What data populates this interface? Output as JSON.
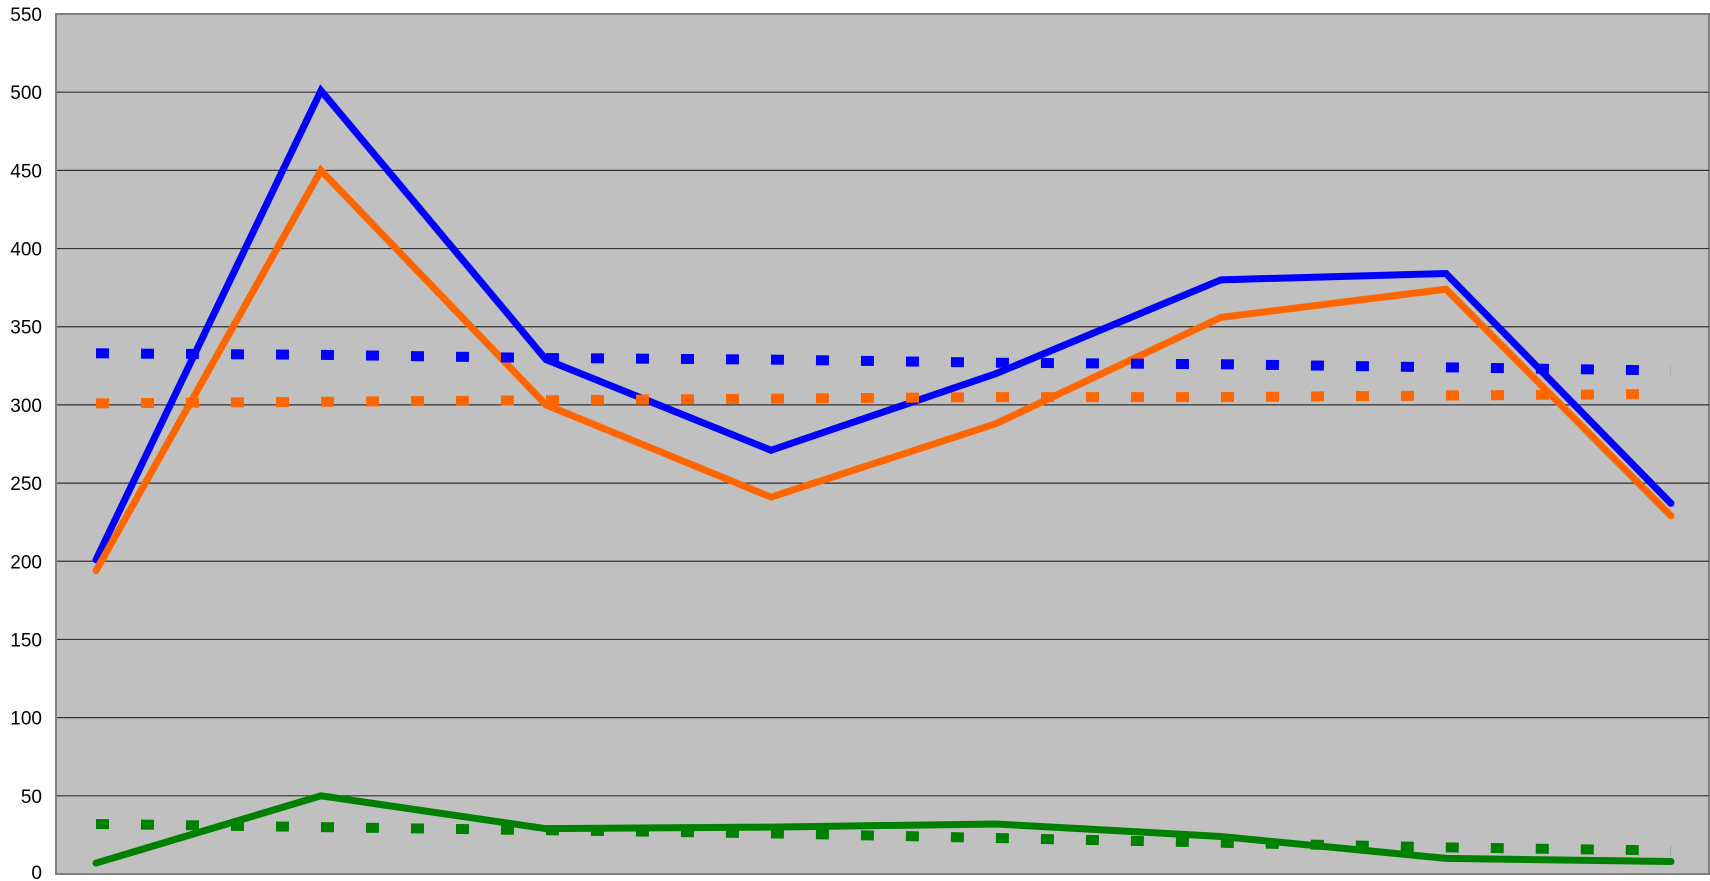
{
  "chart_data": {
    "type": "line",
    "title": "",
    "xlabel": "",
    "ylabel": "",
    "ylim": [
      0,
      550
    ],
    "y_ticks": [
      "0",
      "50",
      "100",
      "150",
      "200",
      "250",
      "300",
      "350",
      "400",
      "450",
      "500",
      "550"
    ],
    "grid": true,
    "legend": "none",
    "background": "#c0c0c0",
    "x": [
      1,
      2,
      3,
      4,
      5,
      6,
      7,
      8
    ],
    "series": [
      {
        "color": "#0000ff",
        "style": "solid",
        "values": [
          201,
          501,
          329,
          271,
          320,
          380,
          384,
          237
        ]
      },
      {
        "color": "#ff6600",
        "style": "solid",
        "values": [
          194,
          450,
          300,
          241,
          288,
          356,
          374,
          229
        ]
      },
      {
        "color": "#008000",
        "style": "solid",
        "values": [
          7,
          50,
          29,
          30,
          32,
          24,
          10,
          8
        ]
      },
      {
        "color": "#0000ff",
        "style": "dotted",
        "values": [
          333,
          332,
          330,
          329,
          327,
          326,
          324,
          322
        ]
      },
      {
        "color": "#ff6600",
        "style": "dotted",
        "values": [
          301,
          302,
          303,
          304,
          305,
          305,
          306,
          307
        ]
      },
      {
        "color": "#008000",
        "style": "dotted",
        "values": [
          32,
          30,
          28,
          26,
          23,
          20,
          17,
          15
        ]
      }
    ]
  }
}
